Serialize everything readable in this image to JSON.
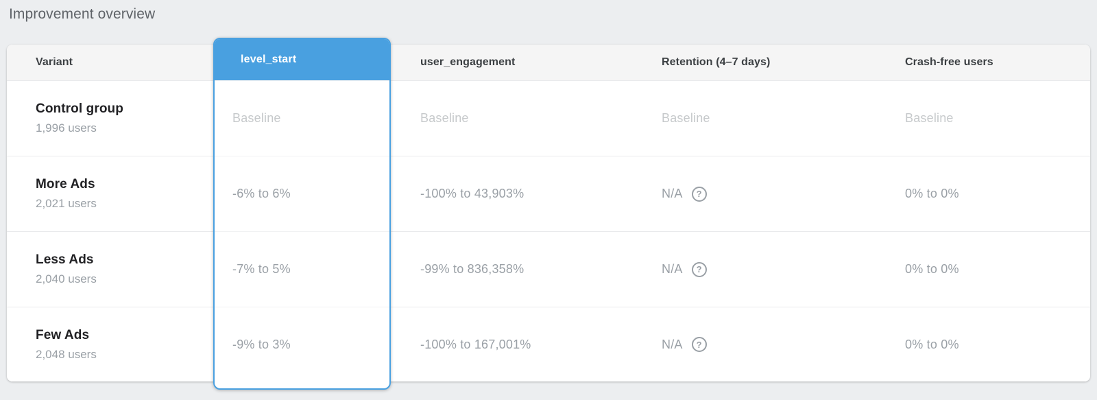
{
  "title": "Improvement overview",
  "colors": {
    "accent": "#49a0e0",
    "page_background": "#eceef0",
    "header_row_background": "#f5f5f5",
    "baseline_text": "#c6c9cb",
    "value_text": "#9aa0a6"
  },
  "table": {
    "columns": {
      "variant": "Variant",
      "level_start": "level_start",
      "user_engagement": "user_engagement",
      "retention": "Retention (4–7 days)",
      "crash_free": "Crash-free users"
    },
    "selected_column": "level_start",
    "help_icon_glyph": "?",
    "rows": [
      {
        "variant": "Control group",
        "users": "1,996 users",
        "level_start": "Baseline",
        "user_engagement": "Baseline",
        "retention": "Baseline",
        "crash_free": "Baseline"
      },
      {
        "variant": "More Ads",
        "users": "2,021 users",
        "level_start": "-6% to 6%",
        "user_engagement": "-100% to 43,903%",
        "retention": "N/A",
        "crash_free": "0% to 0%"
      },
      {
        "variant": "Less Ads",
        "users": "2,040 users",
        "level_start": "-7% to 5%",
        "user_engagement": "-99% to 836,358%",
        "retention": "N/A",
        "crash_free": "0% to 0%"
      },
      {
        "variant": "Few Ads",
        "users": "2,048 users",
        "level_start": "-9% to 3%",
        "user_engagement": "-100% to 167,001%",
        "retention": "N/A",
        "crash_free": "0% to 0%"
      }
    ]
  }
}
